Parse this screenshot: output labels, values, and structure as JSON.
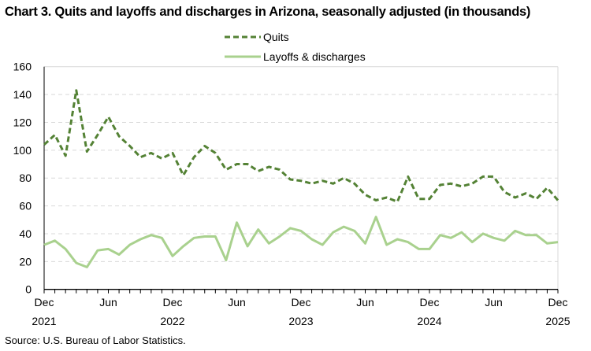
{
  "chart_data": {
    "type": "line",
    "title": "Chart 3. Quits and layoffs and discharges in Arizona, seasonally adjusted (in thousands)",
    "source": "Source: U.S. Bureau of Labor Statistics.",
    "xlabel": "",
    "ylabel": "",
    "ylim": [
      0,
      160
    ],
    "yticks": [
      0,
      20,
      40,
      60,
      80,
      100,
      120,
      140,
      160
    ],
    "grid": true,
    "legend": "top-center",
    "x_start": "Dec 2021",
    "x_end": "Dec 2025",
    "x_tick_labels": [
      {
        "month": "Dec",
        "year": "2021",
        "index": 0
      },
      {
        "month": "Jun",
        "year": "",
        "index": 6
      },
      {
        "month": "Dec",
        "year": "2022",
        "index": 12
      },
      {
        "month": "Jun",
        "year": "",
        "index": 18
      },
      {
        "month": "Dec",
        "year": "2023",
        "index": 24
      },
      {
        "month": "Jun",
        "year": "",
        "index": 30
      },
      {
        "month": "Dec",
        "year": "2024",
        "index": 36
      },
      {
        "month": "Jun",
        "year": "",
        "index": 42
      },
      {
        "month": "Dec",
        "year": "2025",
        "index": 48
      }
    ],
    "series": [
      {
        "name": "Quits",
        "color": "#548235",
        "style": "dashed",
        "values": [
          104,
          111,
          96,
          143,
          99,
          111,
          124,
          110,
          103,
          95,
          98,
          94,
          98,
          82,
          95,
          103,
          98,
          86,
          90,
          90,
          85,
          88,
          86,
          79,
          78,
          76,
          78,
          76,
          80,
          76,
          68,
          64,
          66,
          63,
          81,
          65,
          65,
          75,
          76,
          74,
          76,
          81,
          81,
          70,
          66,
          69,
          65,
          73,
          64
        ]
      },
      {
        "name": "Layoffs & discharges",
        "color": "#A9D18E",
        "style": "solid",
        "values": [
          32,
          35,
          29,
          19,
          16,
          28,
          29,
          25,
          32,
          36,
          39,
          37,
          24,
          31,
          37,
          38,
          38,
          21,
          48,
          31,
          43,
          33,
          38,
          44,
          42,
          36,
          32,
          41,
          45,
          42,
          33,
          52,
          32,
          36,
          34,
          29,
          29,
          39,
          37,
          41,
          34,
          40,
          37,
          35,
          42,
          39,
          39,
          33,
          34
        ]
      }
    ]
  }
}
